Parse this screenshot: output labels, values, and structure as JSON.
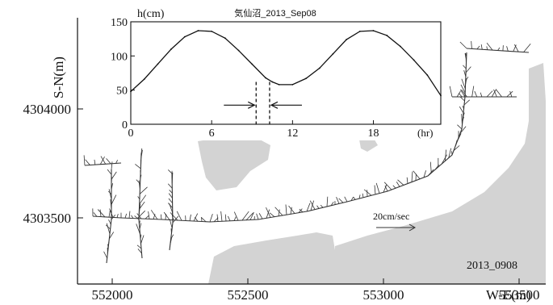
{
  "main_map": {
    "ylabel": "S-N(m)",
    "xlabel": "W-E(m)",
    "yticks": [
      {
        "value": 4304000,
        "label": "4304000"
      },
      {
        "value": 4303500,
        "label": "4303500"
      }
    ],
    "xticks": [
      {
        "value": 552000,
        "label": "552000"
      },
      {
        "value": 552500,
        "label": "552500"
      },
      {
        "value": 553000,
        "label": "553000"
      },
      {
        "value": 553500,
        "label": "553500"
      }
    ],
    "scale_label": "20cm/sec",
    "date_label": "2013_0908",
    "colors": {
      "land": "#d3d3d3",
      "vector": "#333333",
      "frame": "#111111"
    }
  },
  "chart_data": {
    "type": "line",
    "title": "気仙沼_2013_Sep08",
    "ylabel": "h(cm)",
    "xlabel": "(hr)",
    "xlim": [
      0,
      23
    ],
    "ylim": [
      0,
      150
    ],
    "xticks": [
      0,
      6,
      12,
      18
    ],
    "yticks": [
      0,
      50,
      100,
      150
    ],
    "series": [
      {
        "x": [
          0,
          1,
          2,
          3,
          4,
          5,
          6,
          7,
          8,
          9,
          10,
          10.5,
          11,
          12,
          13,
          14,
          15,
          16,
          17,
          18,
          19,
          20,
          21,
          22,
          23
        ],
        "values": [
          48,
          66,
          88,
          110,
          128,
          137,
          136,
          126,
          108,
          88,
          68,
          62,
          58,
          58,
          67,
          82,
          103,
          124,
          136,
          137,
          130,
          114,
          94,
          72,
          42
        ]
      }
    ],
    "markers": {
      "dashed_lines_x": [
        9.3,
        10.3
      ]
    }
  }
}
